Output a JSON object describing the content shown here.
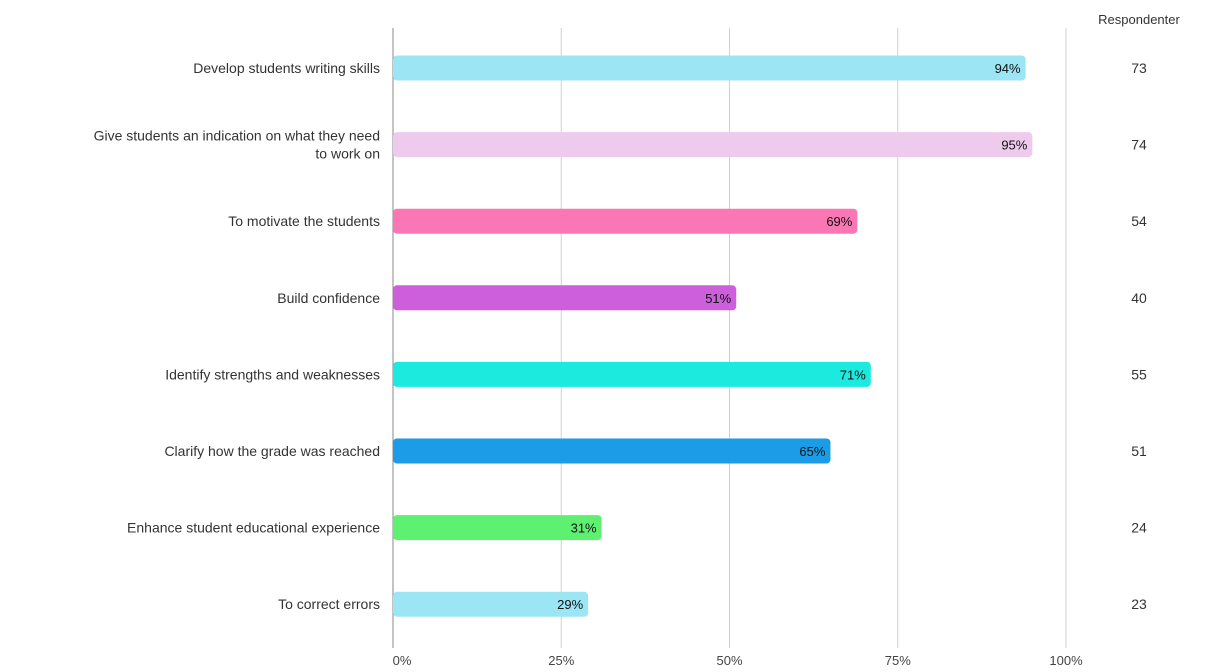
{
  "chart_data": {
    "type": "bar",
    "orientation": "horizontal",
    "categories": [
      "Develop students writing skills",
      "Give students an indication on what they need to work on",
      "To motivate the students",
      "Build confidence",
      "Identify strengths and weaknesses",
      "Clarify how the grade was reached",
      "Enhance student educational experience",
      "To correct errors"
    ],
    "category_label_lines": [
      [
        "Develop students writing skills"
      ],
      [
        "Give students an indication on what they need",
        "to work on"
      ],
      [
        "To motivate the students"
      ],
      [
        "Build confidence"
      ],
      [
        "Identify strengths and weaknesses"
      ],
      [
        "Clarify how the grade was reached"
      ],
      [
        "Enhance student educational experience"
      ],
      [
        "To correct errors"
      ]
    ],
    "values": [
      94,
      95,
      69,
      51,
      71,
      65,
      31,
      29
    ],
    "value_labels": [
      "94%",
      "95%",
      "69%",
      "51%",
      "71%",
      "65%",
      "31%",
      "29%"
    ],
    "colors": [
      "#9be5f4",
      "#eecaec",
      "#fb76b5",
      "#ce5fdc",
      "#1ceadf",
      "#1c9be6",
      "#5ef171",
      "#9be5f4"
    ],
    "respondents_header": "Respondenter",
    "respondents": [
      "73",
      "74",
      "54",
      "40",
      "55",
      "51",
      "24",
      "23"
    ],
    "xlim": [
      0,
      100
    ],
    "xticks": [
      0,
      25,
      50,
      75,
      100
    ],
    "xtick_labels": [
      "0%",
      "25%",
      "50%",
      "75%",
      "100%"
    ],
    "grid": true,
    "grid_color": "#d0d0d0",
    "title": "",
    "xlabel": "",
    "ylabel": ""
  }
}
